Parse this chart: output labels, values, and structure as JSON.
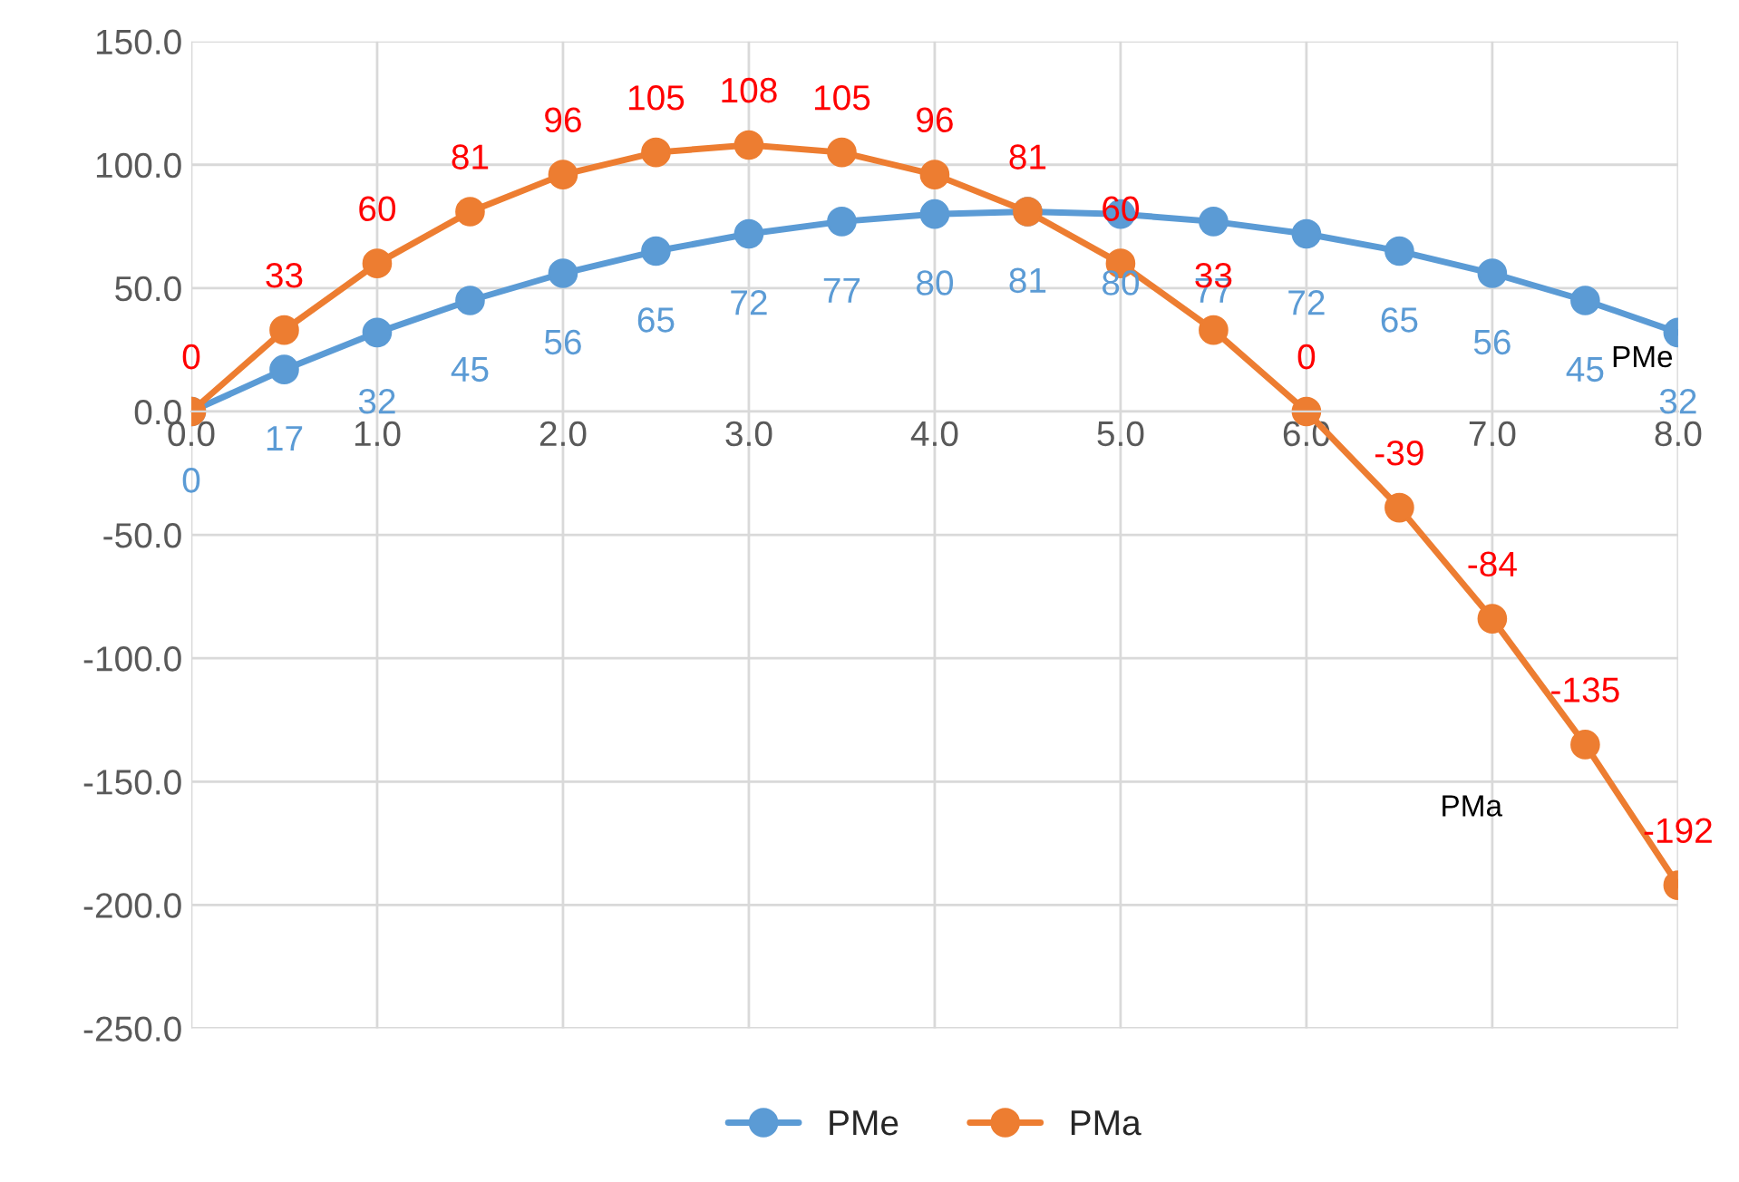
{
  "chart_data": {
    "type": "line",
    "x": [
      0,
      0.5,
      1,
      1.5,
      2,
      2.5,
      3,
      3.5,
      4,
      4.5,
      5,
      5.5,
      6,
      6.5,
      7,
      7.5,
      8
    ],
    "series": [
      {
        "name": "PMe",
        "color": "#5b9bd5",
        "values": [
          0,
          17,
          32,
          45,
          56,
          65,
          72,
          77,
          80,
          81,
          80,
          77,
          72,
          65,
          56,
          45,
          32
        ]
      },
      {
        "name": "PMa",
        "color": "#ed7d31",
        "values": [
          0,
          33,
          60,
          81,
          96,
          105,
          108,
          105,
          96,
          81,
          60,
          33,
          0,
          -39,
          -84,
          -135,
          -192
        ]
      }
    ],
    "xlim": [
      0,
      8
    ],
    "xticks": [
      {
        "value": 0,
        "label": "0.0"
      },
      {
        "value": 1,
        "label": "1.0"
      },
      {
        "value": 2,
        "label": "2.0"
      },
      {
        "value": 3,
        "label": "3.0"
      },
      {
        "value": 4,
        "label": "4.0"
      },
      {
        "value": 5,
        "label": "5.0"
      },
      {
        "value": 6,
        "label": "6.0"
      },
      {
        "value": 7,
        "label": "7.0"
      },
      {
        "value": 8,
        "label": "8.0"
      }
    ],
    "ylim": [
      -250,
      150
    ],
    "yticks": [
      {
        "value": -250,
        "label": "-250.0"
      },
      {
        "value": -200,
        "label": "-200.0"
      },
      {
        "value": -150,
        "label": "-150.0"
      },
      {
        "value": -100,
        "label": "-100.0"
      },
      {
        "value": -50,
        "label": "-50.0"
      },
      {
        "value": 0,
        "label": "0.0"
      },
      {
        "value": 50,
        "label": "50.0"
      },
      {
        "value": 100,
        "label": "100.0"
      },
      {
        "value": 150,
        "label": "150.0"
      }
    ],
    "grid": true,
    "legend": "bottom",
    "marker": "circle",
    "line_style": "solid",
    "data_labels": true,
    "annotations": [
      "PMe",
      "PMa"
    ]
  }
}
